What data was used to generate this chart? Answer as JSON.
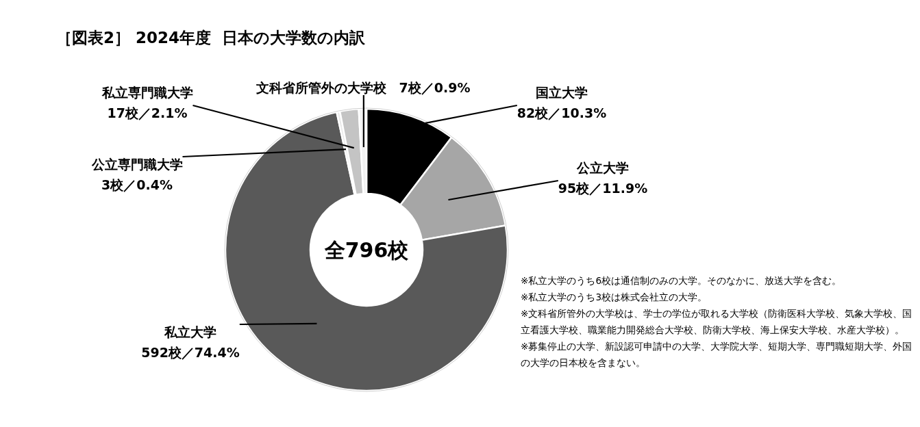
{
  "chart_data": {
    "type": "donut",
    "title": "［図表2］ 2024年度  日本の大学数の内訳",
    "categories": [
      "国立大学",
      "公立大学",
      "私立大学",
      "公立専門職大学",
      "私立専門職大学",
      "文科省所管外の大学校"
    ],
    "values": [
      82,
      95,
      592,
      3,
      17,
      7
    ],
    "colors": [
      "#000000",
      "#a6a6a6",
      "#595959",
      "#e8e8e8",
      "#c4c4c4",
      "#f2f2f2"
    ],
    "value_labels": [
      "82校／10.3%",
      "95校／11.9%",
      "592校／74.4%",
      "3校／0.4%",
      "17校／2.1%",
      "7校／0.9%"
    ],
    "annotations": [
      "全796校",
      "※私立大学のうち6校は通信制のみの大学。そのなかに、放送大学を含む。",
      "※私立大学のうち3校は株式会社立の大学。",
      "※文科省所管外の大学校は、学士の学位が取れる大学校（防衛医科大学校、気象大学校、国立看護大学校、職業能力開発総合大学校、防衛大学校、海上保安大学校、水産大学校）。",
      "※募集停止の大学、新設認可申請中の大学、大学院大学、短期大学、専門職短期大学、外国の大学の日本校を含まない。"
    ]
  }
}
